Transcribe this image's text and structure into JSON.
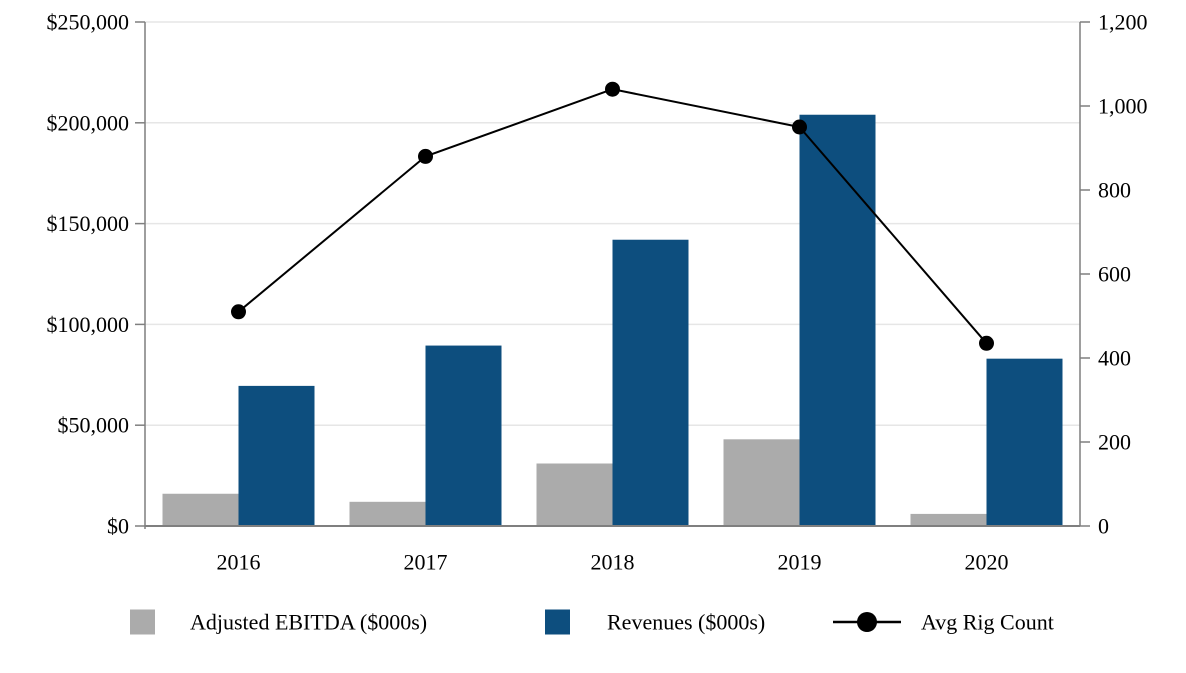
{
  "chart_data": {
    "type": "bar",
    "subtype": "combo-bar-line-dual-axis",
    "title": "",
    "categories": [
      "2016",
      "2017",
      "2018",
      "2019",
      "2020"
    ],
    "series": [
      {
        "name": "Adjusted EBITDA ($000s)",
        "type": "bar",
        "axis": "left",
        "color": "#ababab",
        "values": [
          16000,
          12000,
          31000,
          43000,
          6000
        ]
      },
      {
        "name": "Revenues ($000s)",
        "type": "bar",
        "axis": "left",
        "color": "#0d4e7e",
        "values": [
          69500,
          89500,
          142000,
          204000,
          83000
        ]
      },
      {
        "name": "Avg Rig Count",
        "type": "line",
        "axis": "right",
        "color": "#000000",
        "marker": "circle",
        "values": [
          510,
          880,
          1040,
          950,
          435
        ]
      }
    ],
    "left_axis": {
      "min": 0,
      "max": 250000,
      "tick_labels": [
        "$0",
        "$50,000",
        "$100,000",
        "$150,000",
        "$200,000",
        "$250,000"
      ]
    },
    "right_axis": {
      "min": 0,
      "max": 1200,
      "tick_labels": [
        "0",
        "200",
        "400",
        "600",
        "800",
        "1,000",
        "1,200"
      ]
    },
    "grid": true,
    "legend_position": "bottom",
    "colors": {
      "axis_line": "#7f7f7f",
      "gridline": "#e6e6e6",
      "text": "#000000",
      "background": "#ffffff"
    }
  }
}
